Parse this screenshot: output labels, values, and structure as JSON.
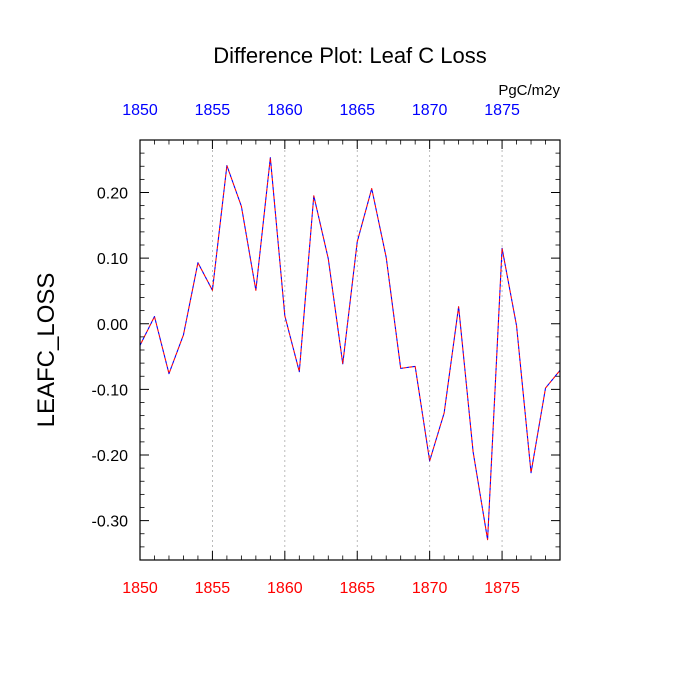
{
  "chart_data": {
    "type": "line",
    "title": "Difference Plot: Leaf C Loss",
    "units_label": "PgC/m2y",
    "ylabel": "LEAFC_LOSS",
    "xlabel": "",
    "xlim": [
      1850,
      1879
    ],
    "ylim": [
      -0.36,
      0.28
    ],
    "x_ticks": [
      1850,
      1855,
      1860,
      1865,
      1870,
      1875
    ],
    "x_tick_labels_top": [
      "1850",
      "1855",
      "1860",
      "1865",
      "1870",
      "1875"
    ],
    "x_tick_labels_bottom": [
      "1850",
      "1855",
      "1860",
      "1865",
      "1870",
      "1875"
    ],
    "y_ticks": [
      0.2,
      0.1,
      0.0,
      -0.1,
      -0.2,
      -0.3
    ],
    "y_tick_labels": [
      "0.20",
      "0.10",
      "0.00",
      "-0.10",
      "-0.20",
      "-0.30"
    ],
    "vertical_gridlines": true,
    "colors": {
      "top_axis_labels": "#0000ff",
      "bottom_axis_labels": "#ff0000",
      "series_a": "#0000ff",
      "series_b": "#ff0000",
      "gridline": "#aaaaaa",
      "axis": "#000000"
    },
    "x": [
      1850,
      1851,
      1852,
      1853,
      1854,
      1855,
      1856,
      1857,
      1858,
      1859,
      1860,
      1861,
      1862,
      1863,
      1864,
      1865,
      1866,
      1867,
      1868,
      1869,
      1870,
      1871,
      1872,
      1873,
      1874,
      1875,
      1876,
      1877,
      1878,
      1879
    ],
    "series": [
      {
        "name": "series_a",
        "values": [
          -0.033,
          0.011,
          -0.076,
          -0.017,
          0.093,
          0.051,
          0.241,
          0.179,
          0.051,
          0.253,
          0.012,
          -0.073,
          0.195,
          0.099,
          -0.061,
          0.125,
          0.206,
          0.101,
          -0.068,
          -0.065,
          -0.209,
          -0.136,
          0.026,
          -0.195,
          -0.329,
          0.115,
          -0.003,
          -0.227,
          -0.098,
          -0.071
        ]
      },
      {
        "name": "series_b",
        "values": [
          -0.033,
          0.011,
          -0.076,
          -0.017,
          0.093,
          0.051,
          0.241,
          0.179,
          0.051,
          0.253,
          0.012,
          -0.073,
          0.195,
          0.099,
          -0.061,
          0.125,
          0.206,
          0.101,
          -0.068,
          -0.065,
          -0.209,
          -0.136,
          0.026,
          -0.195,
          -0.329,
          0.115,
          -0.003,
          -0.227,
          -0.098,
          -0.071
        ]
      }
    ]
  }
}
